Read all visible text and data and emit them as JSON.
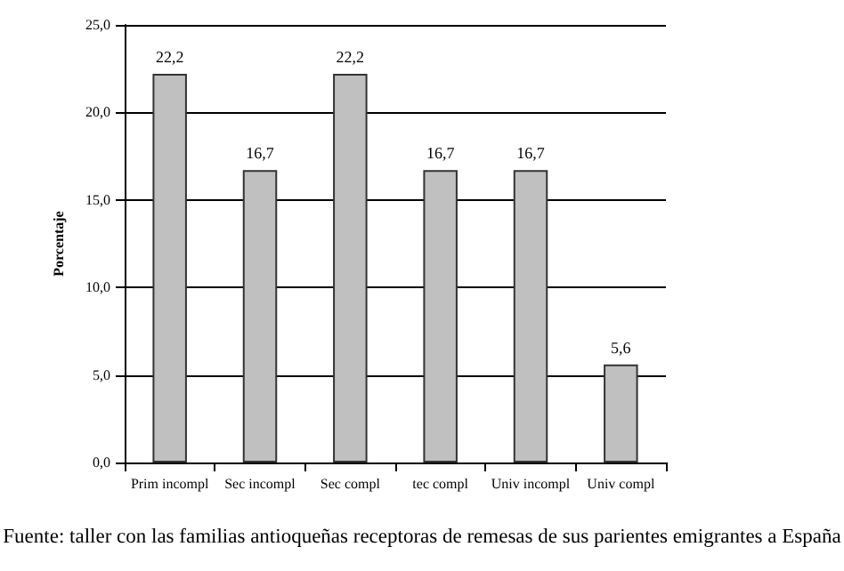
{
  "chart_data": {
    "type": "bar",
    "ylabel": "Porcentaje",
    "categories": [
      "Prim incompl",
      "Sec incompl",
      "Sec compl",
      "tec compl",
      "Univ incompl",
      "Univ compl"
    ],
    "values": [
      22.2,
      16.7,
      22.2,
      16.7,
      16.7,
      5.6
    ],
    "value_labels": [
      "22,2",
      "16,7",
      "22,2",
      "16,7",
      "16,7",
      "5,6"
    ],
    "color": "#c0c0c0",
    "ylim": [
      0,
      25
    ],
    "yticks": [
      {
        "value": 0,
        "label": "0,0"
      },
      {
        "value": 5,
        "label": "5,0"
      },
      {
        "value": 10,
        "label": "10,0"
      },
      {
        "value": 15,
        "label": "15,0"
      },
      {
        "value": 20,
        "label": "20,0"
      },
      {
        "value": 25,
        "label": "25,0"
      }
    ],
    "grid": "y",
    "annotations": [
      "Fuente: taller con las familias antioqueñas receptoras de remesas de sus parientes emigrantes a España"
    ]
  }
}
